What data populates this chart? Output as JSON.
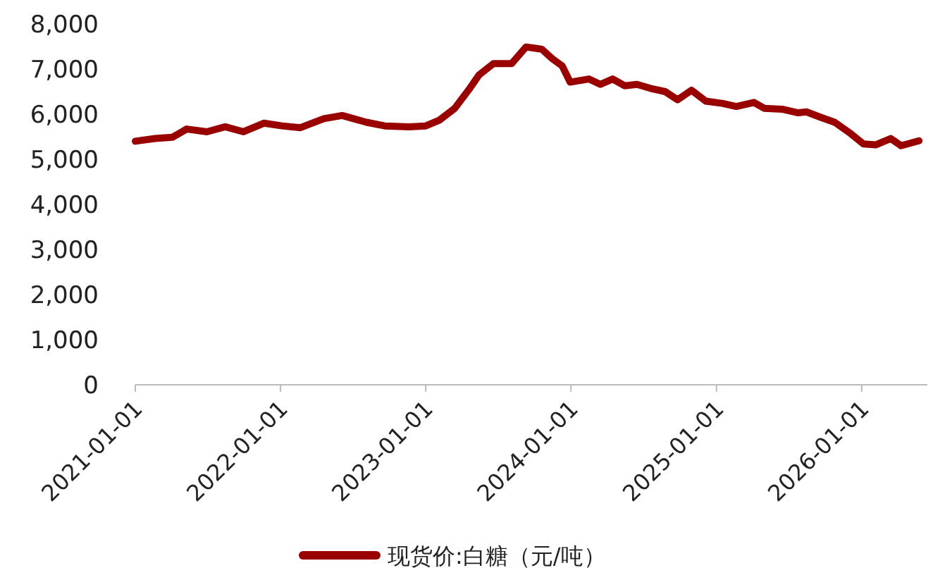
{
  "chart_data": {
    "type": "line",
    "legend": "bottom",
    "grid": false,
    "marker": "none",
    "line_style": "solid",
    "x": [
      "2021-01-01",
      "2021-02-20",
      "2021-04-05",
      "2021-05-10",
      "2021-06-30",
      "2021-08-15",
      "2021-09-30",
      "2021-11-20",
      "2022-01-05",
      "2022-02-20",
      "2022-04-20",
      "2022-06-05",
      "2022-08-05",
      "2022-09-20",
      "2022-11-20",
      "2023-01-01",
      "2023-02-05",
      "2023-03-15",
      "2023-04-20",
      "2023-05-15",
      "2023-06-20",
      "2023-08-05",
      "2023-09-10",
      "2023-10-20",
      "2023-11-15",
      "2023-12-10",
      "2023-12-30",
      "2024-02-15",
      "2024-03-15",
      "2024-04-15",
      "2024-05-15",
      "2024-06-15",
      "2024-07-20",
      "2024-08-25",
      "2024-09-25",
      "2024-10-30",
      "2024-12-05",
      "2025-01-15",
      "2025-02-20",
      "2025-04-05",
      "2025-05-01",
      "2025-06-15",
      "2025-07-25",
      "2025-08-15",
      "2025-09-20",
      "2025-10-25",
      "2025-12-01",
      "2026-01-05",
      "2026-02-05",
      "2026-03-15",
      "2026-04-10",
      "2026-05-25"
    ],
    "series": [
      {
        "name": "现货价:白糖（元/吨）",
        "color": "#990000",
        "values": [
          5400,
          5460,
          5490,
          5670,
          5610,
          5720,
          5610,
          5800,
          5740,
          5700,
          5900,
          5970,
          5820,
          5740,
          5720,
          5740,
          5870,
          6130,
          6550,
          6870,
          7120,
          7120,
          7490,
          7440,
          7230,
          7070,
          6710,
          6780,
          6660,
          6780,
          6630,
          6660,
          6570,
          6500,
          6320,
          6530,
          6290,
          6240,
          6170,
          6260,
          6130,
          6110,
          6030,
          6050,
          5930,
          5820,
          5590,
          5340,
          5320,
          5460,
          5300,
          5410
        ]
      }
    ],
    "xlim": [
      "2021-01-01",
      "2026-06-15"
    ],
    "xticks": [
      {
        "value": "2021-01-01",
        "label": "2021-01-01"
      },
      {
        "value": "2022-01-01",
        "label": "2022-01-01"
      },
      {
        "value": "2023-01-01",
        "label": "2023-01-01"
      },
      {
        "value": "2024-01-01",
        "label": "2024-01-01"
      },
      {
        "value": "2025-01-01",
        "label": "2025-01-01"
      },
      {
        "value": "2026-01-01",
        "label": "2026-01-01"
      }
    ],
    "ylim": [
      0,
      8000
    ],
    "yticks": [
      {
        "value": 0,
        "label": "0"
      },
      {
        "value": 1000,
        "label": "1,000"
      },
      {
        "value": 2000,
        "label": "2,000"
      },
      {
        "value": 3000,
        "label": "3,000"
      },
      {
        "value": 4000,
        "label": "4,000"
      },
      {
        "value": 5000,
        "label": "5,000"
      },
      {
        "value": 6000,
        "label": "6,000"
      },
      {
        "value": 7000,
        "label": "7,000"
      },
      {
        "value": 8000,
        "label": "8,000"
      }
    ]
  }
}
